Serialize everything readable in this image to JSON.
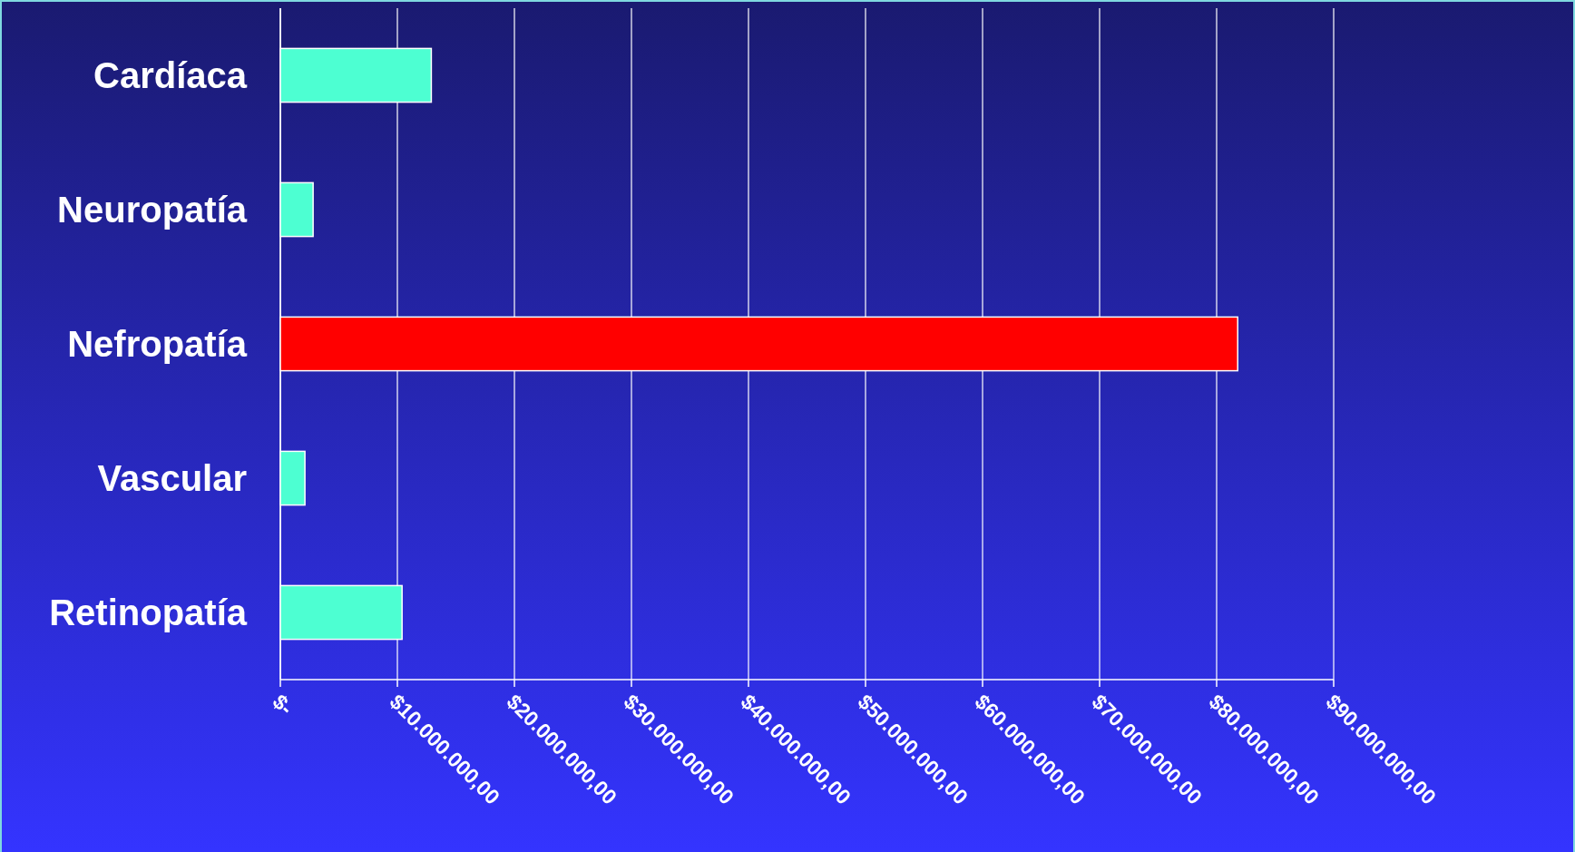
{
  "chart_data": {
    "type": "bar",
    "orientation": "horizontal",
    "categories": [
      "Cardíaca",
      "Neuropatía",
      "Nefropatía",
      "Vascular",
      "Retinopatía"
    ],
    "values": [
      12900000,
      2800000,
      81800000,
      2100000,
      10400000
    ],
    "colors": [
      "#4dffd2",
      "#4dffd2",
      "#ff0000",
      "#4dffd2",
      "#4dffd2"
    ],
    "xlim": [
      0,
      90000000
    ],
    "xticks": [
      {
        "value": 0,
        "label": "$-"
      },
      {
        "value": 10000000,
        "label": "$10.000.000,00"
      },
      {
        "value": 20000000,
        "label": "$20.000.000,00"
      },
      {
        "value": 30000000,
        "label": "$30.000.000,00"
      },
      {
        "value": 40000000,
        "label": "$40.000.000,00"
      },
      {
        "value": 50000000,
        "label": "$50.000.000,00"
      },
      {
        "value": 60000000,
        "label": "$60.000.000,00"
      },
      {
        "value": 70000000,
        "label": "$70.000.000,00"
      },
      {
        "value": 80000000,
        "label": "$80.000.000,00"
      },
      {
        "value": 90000000,
        "label": "$90.000.000,00"
      }
    ],
    "grid": "x"
  }
}
